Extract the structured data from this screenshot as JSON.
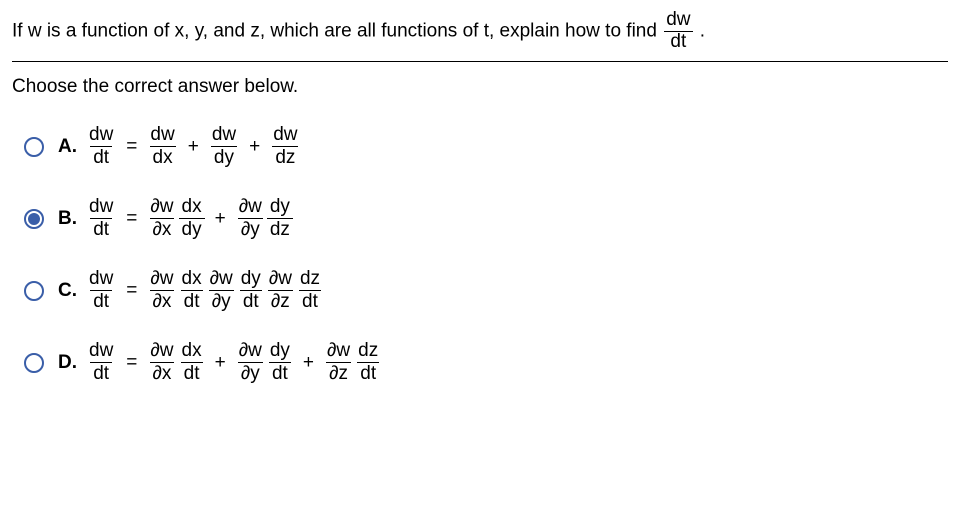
{
  "question": {
    "lead": "If w is a function of x, y, and z, which are all functions of t, explain how to find ",
    "target_n": "dw",
    "target_d": "dt",
    "tail": "."
  },
  "prompt": "Choose the correct answer below.",
  "selected_index": 1,
  "options": [
    {
      "letter": "A.",
      "lhs_n": "dw",
      "lhs_d": "dt",
      "terms": [
        [
          {
            "n": "dw",
            "d": "dx"
          }
        ],
        [
          {
            "n": "dw",
            "d": "dy"
          }
        ],
        [
          {
            "n": "dw",
            "d": "dz"
          }
        ]
      ],
      "sep": " + "
    },
    {
      "letter": "B.",
      "lhs_n": "dw",
      "lhs_d": "dt",
      "terms": [
        [
          {
            "n": "∂w",
            "d": "∂x"
          },
          {
            "n": "dx",
            "d": "dy"
          }
        ],
        [
          {
            "n": "∂w",
            "d": "∂y"
          },
          {
            "n": "dy",
            "d": "dz"
          }
        ]
      ],
      "sep": " + "
    },
    {
      "letter": "C.",
      "lhs_n": "dw",
      "lhs_d": "dt",
      "terms": [
        [
          {
            "n": "∂w",
            "d": "∂x"
          },
          {
            "n": "dx",
            "d": "dt"
          },
          {
            "n": "∂w",
            "d": "∂y"
          },
          {
            "n": "dy",
            "d": "dt"
          },
          {
            "n": "∂w",
            "d": "∂z"
          },
          {
            "n": "dz",
            "d": "dt"
          }
        ]
      ],
      "sep": ""
    },
    {
      "letter": "D.",
      "lhs_n": "dw",
      "lhs_d": "dt",
      "terms": [
        [
          {
            "n": "∂w",
            "d": "∂x"
          },
          {
            "n": "dx",
            "d": "dt"
          }
        ],
        [
          {
            "n": "∂w",
            "d": "∂y"
          },
          {
            "n": "dy",
            "d": "dt"
          }
        ],
        [
          {
            "n": "∂w",
            "d": "∂z"
          },
          {
            "n": "dz",
            "d": "dt"
          }
        ]
      ],
      "sep": " + "
    }
  ]
}
